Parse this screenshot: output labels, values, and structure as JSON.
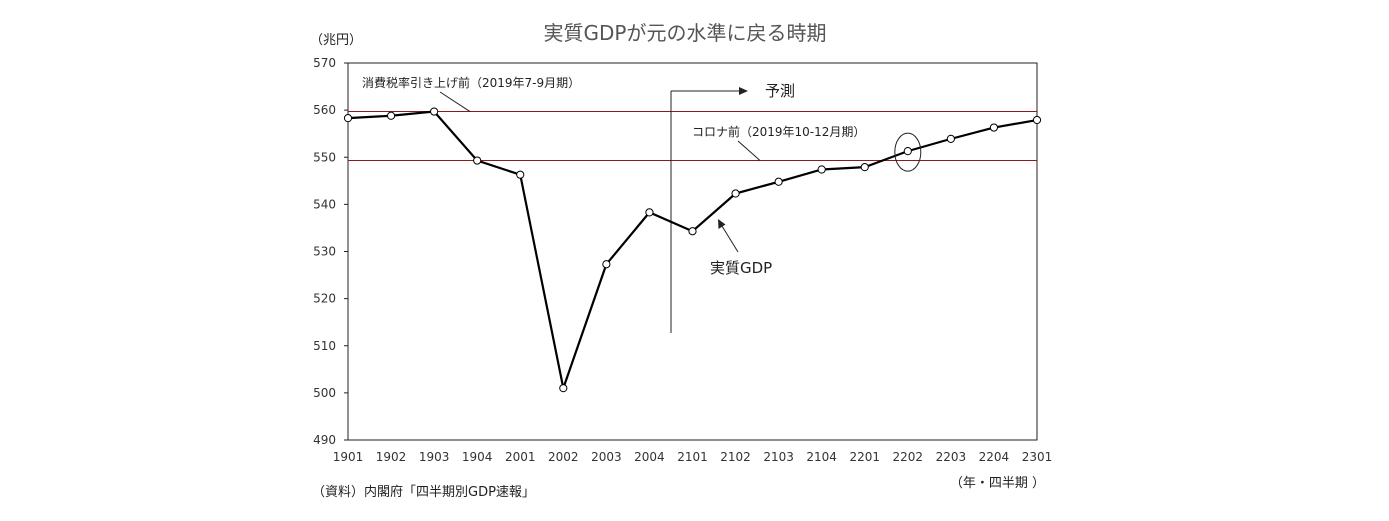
{
  "chart_data": {
    "type": "line",
    "title": "実質GDPが元の水準に戻る時期",
    "y_unit": "（兆円）",
    "x_unit": "（年・四半期 ）",
    "source": "（資料）内閣府「四半期別GDP速報」",
    "ylim": [
      490,
      570
    ],
    "yticks": [
      "570",
      "560",
      "550",
      "540",
      "530",
      "520",
      "510",
      "500",
      "490"
    ],
    "categories": [
      "1901",
      "1902",
      "1903",
      "1904",
      "2001",
      "2002",
      "2003",
      "2004",
      "2101",
      "2102",
      "2103",
      "2104",
      "2201",
      "2202",
      "2203",
      "2204",
      "2301"
    ],
    "series": [
      {
        "name": "実質GDP",
        "values": [
          558.3,
          558.8,
          559.7,
          549.3,
          546.3,
          501.0,
          527.3,
          538.3,
          534.3,
          542.3,
          544.8,
          547.4,
          547.9,
          551.3,
          553.9,
          556.3,
          557.9
        ]
      }
    ],
    "reference_lines": [
      {
        "label": "消費税率引き上げ前（2019年7-9月期）",
        "value": 559.7
      },
      {
        "label": "コロナ前（2019年10-12月期）",
        "value": 549.3
      }
    ],
    "forecast_label": "予測",
    "forecast_start_after": "2004",
    "highlight_category": "2202",
    "grid": false,
    "legend": "none"
  }
}
